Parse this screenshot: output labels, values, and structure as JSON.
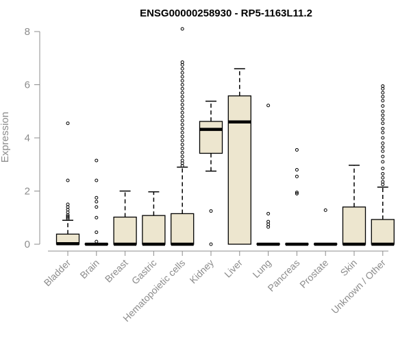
{
  "chart_data": {
    "type": "boxplot",
    "title": "ENSG00000258930 - RP5-1163L11.2",
    "xlabel": "",
    "ylabel": "Expression",
    "ylim": [
      0,
      8
    ],
    "yticks": [
      0,
      2,
      4,
      6,
      8
    ],
    "categories": [
      "Bladder",
      "Brain",
      "Breast",
      "Gastric",
      "Hematopoietic cells",
      "Kidney",
      "Liver",
      "Lung",
      "Pancreas",
      "Prostate",
      "Skin",
      "Unknown / Other"
    ],
    "box_fill": "#ede6cf",
    "boxes": [
      {
        "category": "Bladder",
        "min": 0,
        "q1": 0,
        "median": 0.02,
        "q3": 0.38,
        "max": 0.9,
        "outliers": [
          0.95,
          1.0,
          1.05,
          1.1,
          1.2,
          1.3,
          1.4,
          1.5,
          2.4,
          4.55
        ]
      },
      {
        "category": "Brain",
        "min": 0,
        "q1": 0,
        "median": 0,
        "q3": 0.02,
        "max": 0.02,
        "outliers": [
          0.1,
          0.45,
          1.0,
          1.4,
          1.6,
          1.75,
          2.4,
          3.15
        ]
      },
      {
        "category": "Breast",
        "min": 0,
        "q1": 0,
        "median": 0,
        "q3": 1.02,
        "max": 2.0,
        "outliers": []
      },
      {
        "category": "Gastric",
        "min": 0,
        "q1": 0,
        "median": 0,
        "q3": 1.08,
        "max": 1.97,
        "outliers": []
      },
      {
        "category": "Hematopoietic cells",
        "min": 0,
        "q1": 0,
        "median": 0,
        "q3": 1.15,
        "max": 2.9,
        "outliers": [
          2.95,
          3.05,
          3.15,
          3.3,
          3.45,
          3.6,
          3.75,
          3.9,
          4.05,
          4.2,
          4.35,
          4.5,
          4.65,
          4.8,
          4.95,
          5.1,
          5.25,
          5.4,
          5.55,
          5.7,
          5.85,
          6.0,
          6.15,
          6.3,
          6.45,
          6.6,
          6.75,
          6.85,
          8.1
        ]
      },
      {
        "category": "Kidney",
        "min": 2.75,
        "q1": 3.42,
        "median": 4.32,
        "q3": 4.62,
        "max": 5.38,
        "outliers": [
          1.25,
          0.0
        ]
      },
      {
        "category": "Liver",
        "min": 0,
        "q1": 0,
        "median": 4.6,
        "q3": 5.58,
        "max": 6.6,
        "outliers": []
      },
      {
        "category": "Lung",
        "min": 0,
        "q1": 0,
        "median": 0,
        "q3": 0.02,
        "max": 0.02,
        "outliers": [
          0.65,
          0.75,
          0.85,
          1.15,
          5.22
        ]
      },
      {
        "category": "Pancreas",
        "min": 0,
        "q1": 0,
        "median": 0,
        "q3": 0.02,
        "max": 0.02,
        "outliers": [
          1.9,
          1.95,
          2.55,
          2.8,
          3.55
        ]
      },
      {
        "category": "Prostate",
        "min": 0,
        "q1": 0,
        "median": 0,
        "q3": 0.02,
        "max": 0.02,
        "outliers": [
          1.28
        ]
      },
      {
        "category": "Skin",
        "min": 0,
        "q1": 0,
        "median": 0,
        "q3": 1.4,
        "max": 2.97,
        "outliers": []
      },
      {
        "category": "Unknown / Other",
        "min": 0,
        "q1": 0,
        "median": 0,
        "q3": 0.93,
        "max": 2.15,
        "outliers": [
          2.25,
          2.35,
          2.5,
          2.65,
          2.85,
          3.1,
          3.3,
          3.5,
          3.65,
          3.8,
          4.0,
          4.2,
          4.35,
          4.55,
          4.7,
          4.85,
          5.0,
          5.2,
          5.4,
          5.55,
          5.7,
          5.85,
          5.95
        ]
      }
    ]
  }
}
